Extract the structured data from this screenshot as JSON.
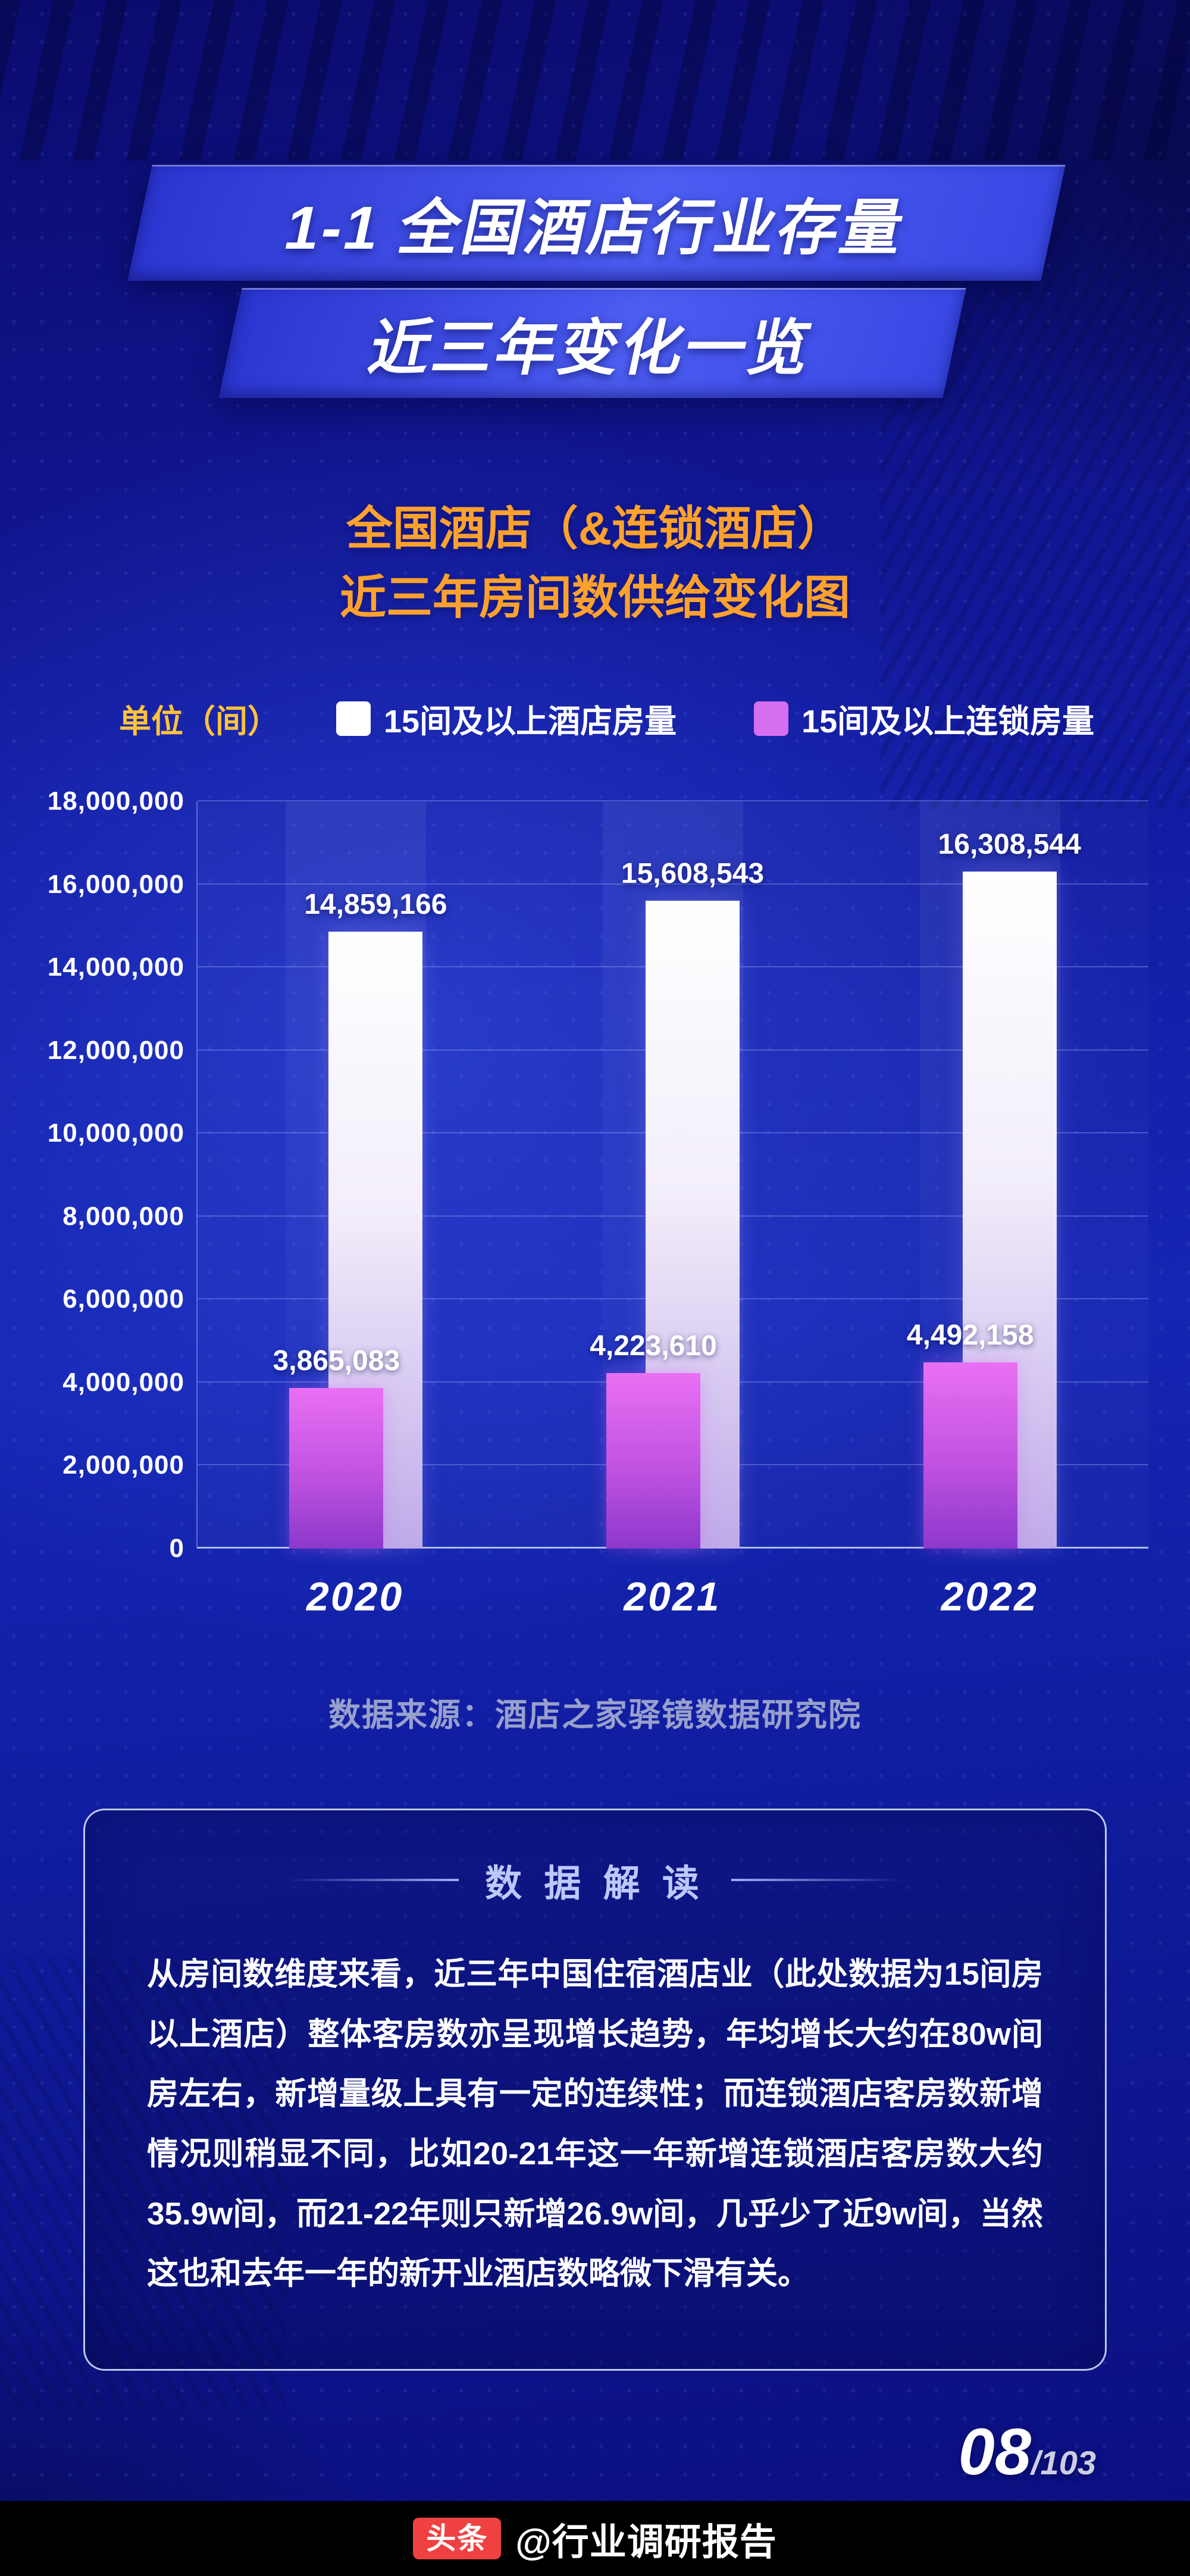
{
  "banner": {
    "line1": "1-1 全国酒店行业存量",
    "line2": "近三年变化一览"
  },
  "subtitle": {
    "line1": "全国酒店（&连锁酒店）",
    "line2": "近三年房间数供给变化图"
  },
  "legend": {
    "unit_label": "单位（间）",
    "items": [
      {
        "label": "15间及以上酒店房量",
        "color": "#ffffff"
      },
      {
        "label": "15间及以上连锁房量",
        "color": "#d66ef0"
      }
    ]
  },
  "chart_data": {
    "type": "bar",
    "title": "全国酒店（&连锁酒店）近三年房间数供给变化图",
    "xlabel": "",
    "ylabel": "单位（间）",
    "categories": [
      "2020",
      "2021",
      "2022"
    ],
    "series": [
      {
        "name": "15间及以上酒店房量",
        "values": [
          14859166,
          15608543,
          16308544
        ],
        "labels": [
          "14,859,166",
          "15,608,543",
          "16,308,544"
        ],
        "color": "#ffffff"
      },
      {
        "name": "15间及以上连锁房量",
        "values": [
          3865083,
          4223610,
          4492158
        ],
        "labels": [
          "3,865,083",
          "4,223,610",
          "4,492,158"
        ],
        "color": "#c052e0"
      }
    ],
    "ylim": [
      0,
      18000000
    ],
    "ytick_step": 2000000,
    "yticks": [
      {
        "value": 0,
        "label": "0"
      },
      {
        "value": 2000000,
        "label": "2,000,000"
      },
      {
        "value": 4000000,
        "label": "4,000,000"
      },
      {
        "value": 6000000,
        "label": "6,000,000"
      },
      {
        "value": 8000000,
        "label": "8,000,000"
      },
      {
        "value": 10000000,
        "label": "10,000,000"
      },
      {
        "value": 12000000,
        "label": "12,000,000"
      },
      {
        "value": 14000000,
        "label": "14,000,000"
      },
      {
        "value": 16000000,
        "label": "16,000,000"
      },
      {
        "value": 18000000,
        "label": "18,000,000"
      }
    ],
    "grid": true,
    "legend_position": "top"
  },
  "source": "数据来源：酒店之家驿镜数据研究院",
  "interpretation": {
    "title": "数 据 解 读",
    "body": "从房间数维度来看，近三年中国住宿酒店业（此处数据为15间房以上酒店）整体客房数亦呈现增长趋势，年均增长大约在80w间房左右，新增量级上具有一定的连续性；而连锁酒店客房数新增情况则稍显不同，比如20-21年这一年新增连锁酒店客房数大约35.9w间，而21-22年则只新增26.9w间，几乎少了近9w间，当然这也和去年一年的新开业酒店数略微下滑有关。"
  },
  "footer": {
    "page_current": "08",
    "page_total": "/103",
    "watermark_logo": "头条",
    "watermark_text": "@行业调研报告"
  },
  "colors": {
    "background_top": "#0b0b6e",
    "background_mid": "#1526b4",
    "banner_blue": "#4c5df2",
    "accent_orange": "#ffa12e",
    "unit_yellow": "#ffc33d",
    "bar_hotel_top": "#ffffff",
    "bar_hotel_bottom": "#bfaae9",
    "bar_chain_top": "#e970f4",
    "bar_chain_bottom": "#8c38cc",
    "grid_line": "#788ceb",
    "source_text": "#98a0cc",
    "interpretation_title": "#bcc9ff",
    "toutiao_red": "#f04142"
  }
}
